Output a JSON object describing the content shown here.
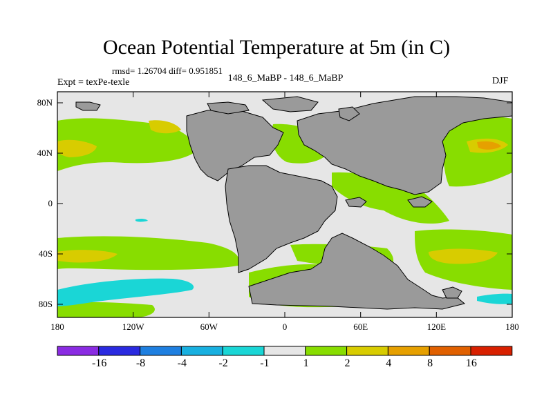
{
  "title": "Ocean Potential Temperature at 5m (in C)",
  "stats_line": "rmsd= 1.26704 diff= 0.951851",
  "experiment_label": "Expt = texPe-texle",
  "case_label": "148_6_MaBP - 148_6_MaBP",
  "season_label": "DJF",
  "y_axis_ticks": [
    "80N",
    "40N",
    "0",
    "40S",
    "80S"
  ],
  "x_axis_ticks": [
    "180",
    "120W",
    "60W",
    "0",
    "60E",
    "120E",
    "180"
  ],
  "colorbar": {
    "labels": [
      "-16",
      "-8",
      "-4",
      "-2",
      "-1",
      "1",
      "2",
      "4",
      "8",
      "16"
    ],
    "colors": [
      "#8a2be2",
      "#2a2ae0",
      "#1e7fe0",
      "#19b0e0",
      "#1ad6d6",
      "#e6e6e6",
      "#88dd00",
      "#d8cc00",
      "#e6a000",
      "#e06000",
      "#d82000"
    ]
  },
  "colors": {
    "land": "#9a9a9a",
    "ocean_neutral": "#e6e6e6",
    "positive_weak": "#88dd00",
    "positive_mid": "#d8cc00",
    "positive_high": "#e6a000",
    "positive_strong": "#e06000",
    "negative_mid": "#1ad6d6"
  }
}
